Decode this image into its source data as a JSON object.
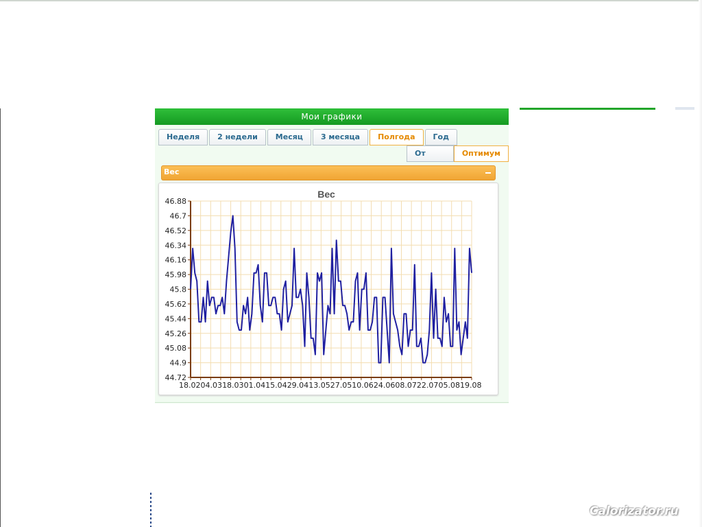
{
  "widget": {
    "title": "Мои графики",
    "tabs": [
      {
        "label": "Неделя",
        "active": false
      },
      {
        "label": "2 недели",
        "active": false
      },
      {
        "label": "Месяц",
        "active": false
      },
      {
        "label": "3 месяца",
        "active": false
      },
      {
        "label": "Полгода",
        "active": true
      },
      {
        "label": "Год",
        "active": false
      }
    ],
    "subtabs": [
      {
        "label": "От нуля",
        "active": false
      },
      {
        "label": "Оптимум",
        "active": true
      }
    ],
    "panel_title": "Вес"
  },
  "watermark": "Calorizator.ru",
  "colors": {
    "header_green": "#1fae2c",
    "active_tab": "#e58a00",
    "panel_orange": "#f5b03f",
    "series_line": "#2020a0",
    "axis": "#7a3c10",
    "grid": "#f3ddb0"
  },
  "chart_data": {
    "type": "line",
    "title": "Вес",
    "xlabel": "",
    "ylabel": "",
    "ylim": [
      44.72,
      46.88
    ],
    "yticks": [
      "46.88",
      "46.7",
      "46.52",
      "46.34",
      "46.16",
      "45.98",
      "45.8",
      "45.62",
      "45.44",
      "45.26",
      "45.08",
      "44.9",
      "44.72"
    ],
    "x_tick_labels": [
      "18.02",
      "04.03",
      "18.03",
      "01.04",
      "15.04",
      "29.04",
      "13.05",
      "27.05",
      "10.06",
      "24.06",
      "08.07",
      "22.07",
      "05.08",
      "19.08"
    ],
    "grid": true,
    "series": [
      {
        "values": [
          45.8,
          46.3,
          46.0,
          45.9,
          45.4,
          45.4,
          45.7,
          45.4,
          45.9,
          45.6,
          45.7,
          45.7,
          45.5,
          45.6,
          45.6,
          45.7,
          45.5,
          45.9,
          46.2,
          46.5,
          46.7,
          46.3,
          45.4,
          45.3,
          45.3,
          45.6,
          45.5,
          45.7,
          45.3,
          45.5,
          46.0,
          46.0,
          46.1,
          45.6,
          45.4,
          46.0,
          46.0,
          45.6,
          45.6,
          45.7,
          45.7,
          45.5,
          45.5,
          45.3,
          45.8,
          45.9,
          45.4,
          45.5,
          45.6,
          46.3,
          45.7,
          45.7,
          45.8,
          45.6,
          45.1,
          46.0,
          45.7,
          45.2,
          45.2,
          45.0,
          46.0,
          45.9,
          46.0,
          45.0,
          45.3,
          45.6,
          45.5,
          46.3,
          45.5,
          46.4,
          45.9,
          45.9,
          45.6,
          45.6,
          45.5,
          45.3,
          45.4,
          45.4,
          45.9,
          46.0,
          45.3,
          45.8,
          45.8,
          46.0,
          45.3,
          45.3,
          45.4,
          45.7,
          45.7,
          44.9,
          44.9,
          45.7,
          45.7,
          45.3,
          44.9,
          46.3,
          45.5,
          45.4,
          45.3,
          45.1,
          45.0,
          45.5,
          45.5,
          45.1,
          45.3,
          45.3,
          46.1,
          45.1,
          45.1,
          45.2,
          44.9,
          44.9,
          45.0,
          45.3,
          46.0,
          45.2,
          45.8,
          45.2,
          45.2,
          45.1,
          45.7,
          45.4,
          45.5,
          45.1,
          45.1,
          46.3,
          45.3,
          45.4,
          45.0,
          45.2,
          45.4,
          45.2,
          46.3,
          46.0
        ]
      }
    ]
  }
}
